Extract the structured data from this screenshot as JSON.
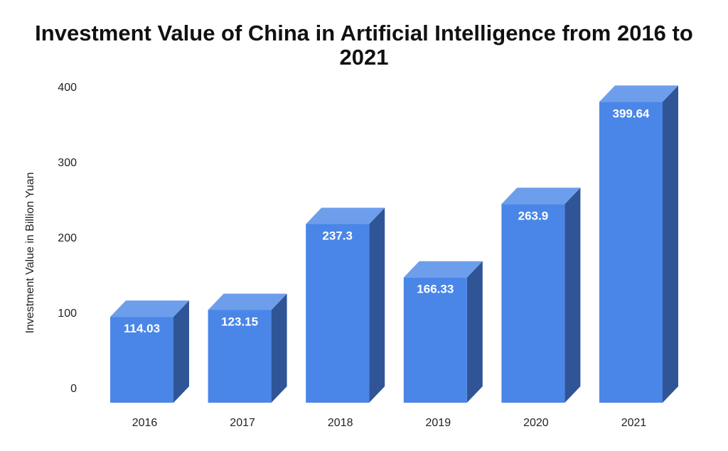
{
  "chart_data": {
    "type": "bar",
    "title_lines": [
      "Investment Value of China in Artificial Intelligence from 2016 to",
      "2021"
    ],
    "xlabel": "",
    "ylabel": "Investment Value in Billion Yuan",
    "categories": [
      "2016",
      "2017",
      "2018",
      "2019",
      "2020",
      "2021"
    ],
    "values": [
      114.03,
      123.15,
      237.3,
      166.33,
      263.9,
      399.64
    ],
    "data_labels": [
      "114.03",
      "123.15",
      "237.3",
      "166.33",
      "263.9",
      "399.64"
    ],
    "yticks": [
      0,
      100,
      200,
      300,
      400
    ],
    "ylim": [
      0,
      420
    ],
    "grid": false,
    "legend": "none",
    "colors": {
      "front": "#4a86e8",
      "top": "#6d9eeb",
      "side": "#2f5597"
    }
  }
}
